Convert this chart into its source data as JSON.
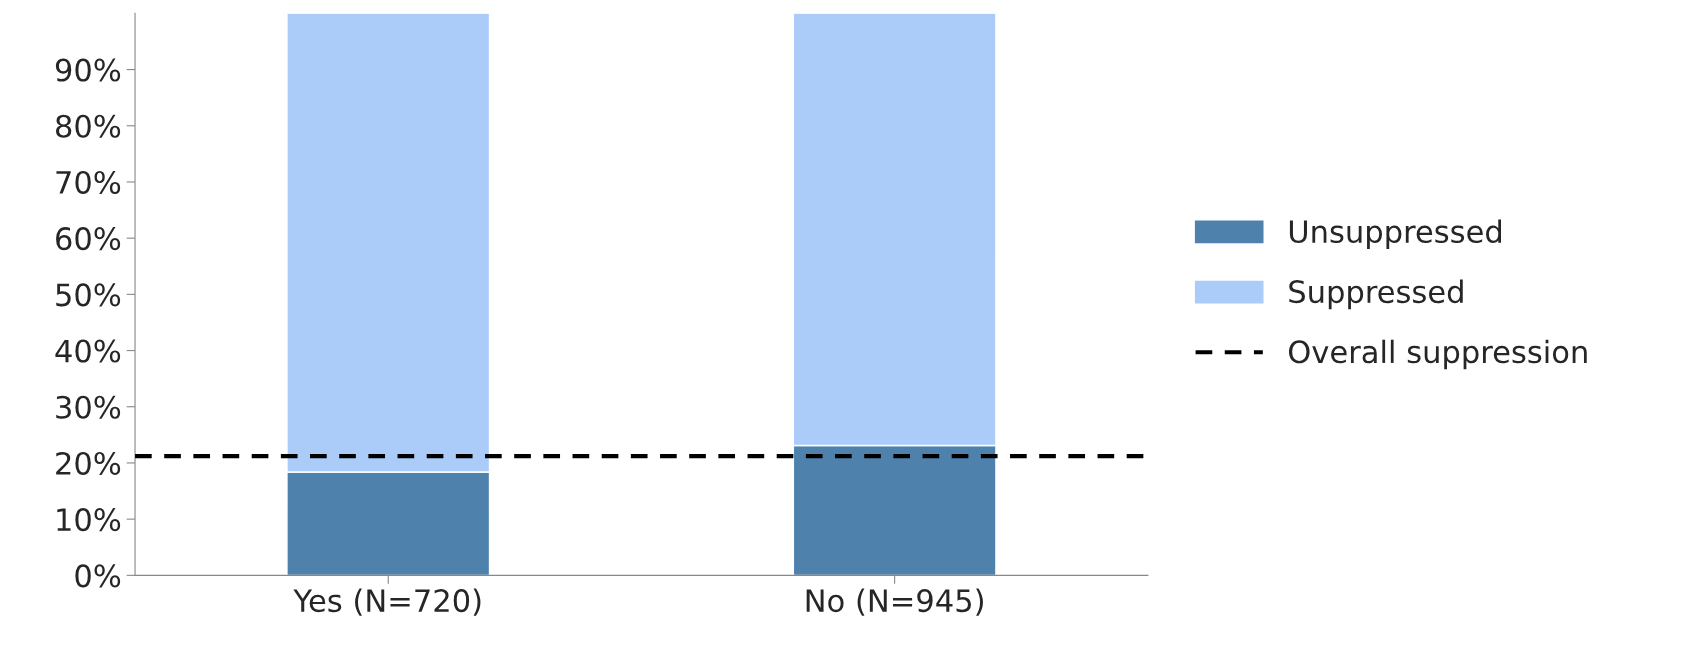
{
  "chart_data": {
    "type": "bar",
    "stacked": true,
    "categories": [
      "Yes (N=720)",
      "No (N=945)"
    ],
    "series": [
      {
        "name": "Unsuppressed",
        "color": "#4f81ad",
        "values": [
          18.4,
          23.1
        ]
      },
      {
        "name": "Suppressed",
        "color": "#abcbf8",
        "values": [
          81.6,
          76.9
        ]
      }
    ],
    "ylim": [
      0,
      100
    ],
    "yticks": [
      {
        "value": 0,
        "label": "0%"
      },
      {
        "value": 10,
        "label": "10%"
      },
      {
        "value": 20,
        "label": "20%"
      },
      {
        "value": 30,
        "label": "30%"
      },
      {
        "value": 40,
        "label": "40%"
      },
      {
        "value": 50,
        "label": "50%"
      },
      {
        "value": 60,
        "label": "60%"
      },
      {
        "value": 70,
        "label": "70%"
      },
      {
        "value": 80,
        "label": "80%"
      },
      {
        "value": 90,
        "label": "90%"
      }
    ],
    "ref_lines": [
      {
        "axis": "y",
        "value": 21.2,
        "label": "Overall suppression",
        "color": "#000000",
        "line_style": "dashed"
      }
    ],
    "grid": false,
    "legend": "right"
  }
}
